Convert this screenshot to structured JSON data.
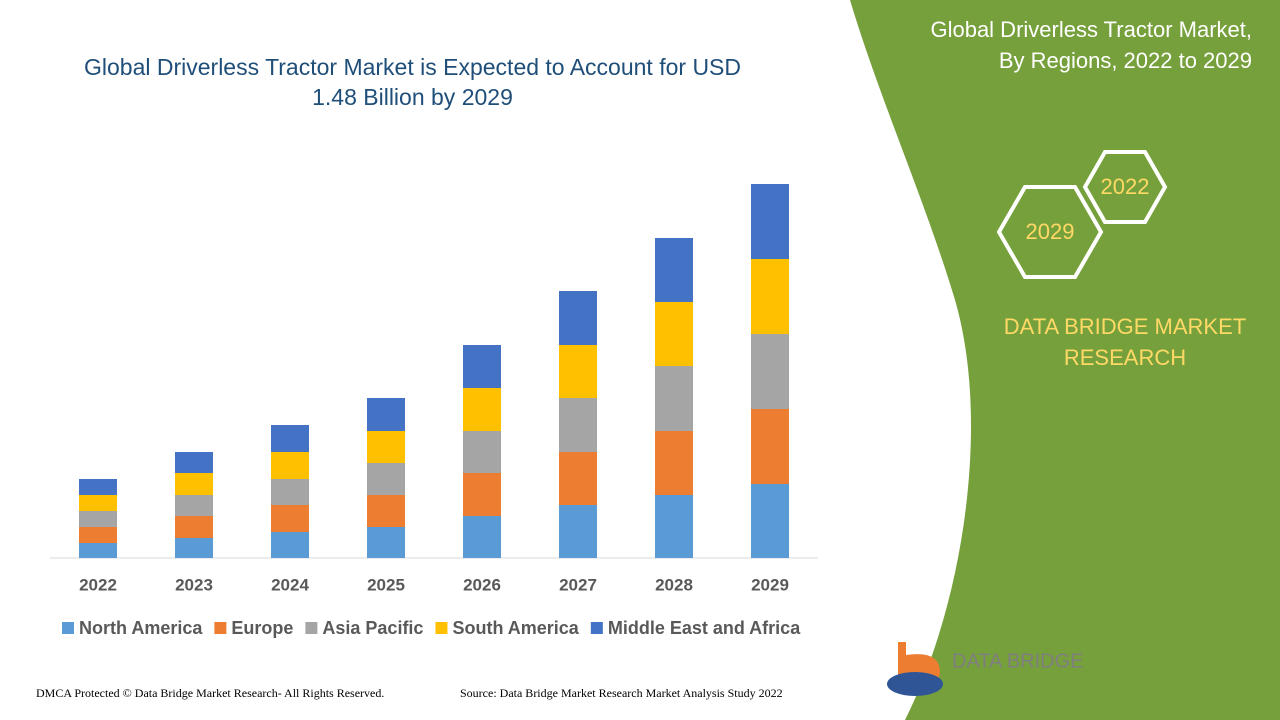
{
  "chart_data": {
    "type": "bar",
    "stacked": true,
    "title": "Global Driverless Tractor Market is Expected to Account for USD 1.48 Billion by 2029",
    "categories": [
      "2022",
      "2023",
      "2024",
      "2025",
      "2026",
      "2027",
      "2028",
      "2029"
    ],
    "series": [
      {
        "name": "North America",
        "color": "#5b9bd5",
        "values": [
          15,
          20,
          26,
          31,
          42,
          53,
          63,
          74
        ]
      },
      {
        "name": "Europe",
        "color": "#ed7d31",
        "values": [
          16,
          22,
          27,
          32,
          43,
          53,
          64,
          75
        ]
      },
      {
        "name": "Asia Pacific",
        "color": "#a5a5a5",
        "values": [
          16,
          21,
          26,
          32,
          42,
          54,
          65,
          75
        ]
      },
      {
        "name": "South America",
        "color": "#ffc000",
        "values": [
          16,
          22,
          27,
          32,
          43,
          53,
          64,
          75
        ]
      },
      {
        "name": "Middle East and Africa",
        "color": "#4472c4",
        "values": [
          16,
          21,
          27,
          33,
          43,
          54,
          64,
          75
        ]
      }
    ]
  },
  "panel": {
    "title": "Global Driverless Tractor Market, By Regions, 2022 to 2029",
    "hexagons": [
      "2022",
      "2029"
    ],
    "brand": "DATA BRIDGE MARKET RESEARCH"
  },
  "logo": {
    "text": "DATA BRIDGE"
  },
  "footer": {
    "copyright": "DMCA Protected © Data Bridge Market Research- All Rights Reserved.",
    "source": "Source: Data Bridge Market Research Market Analysis Study 2022"
  }
}
